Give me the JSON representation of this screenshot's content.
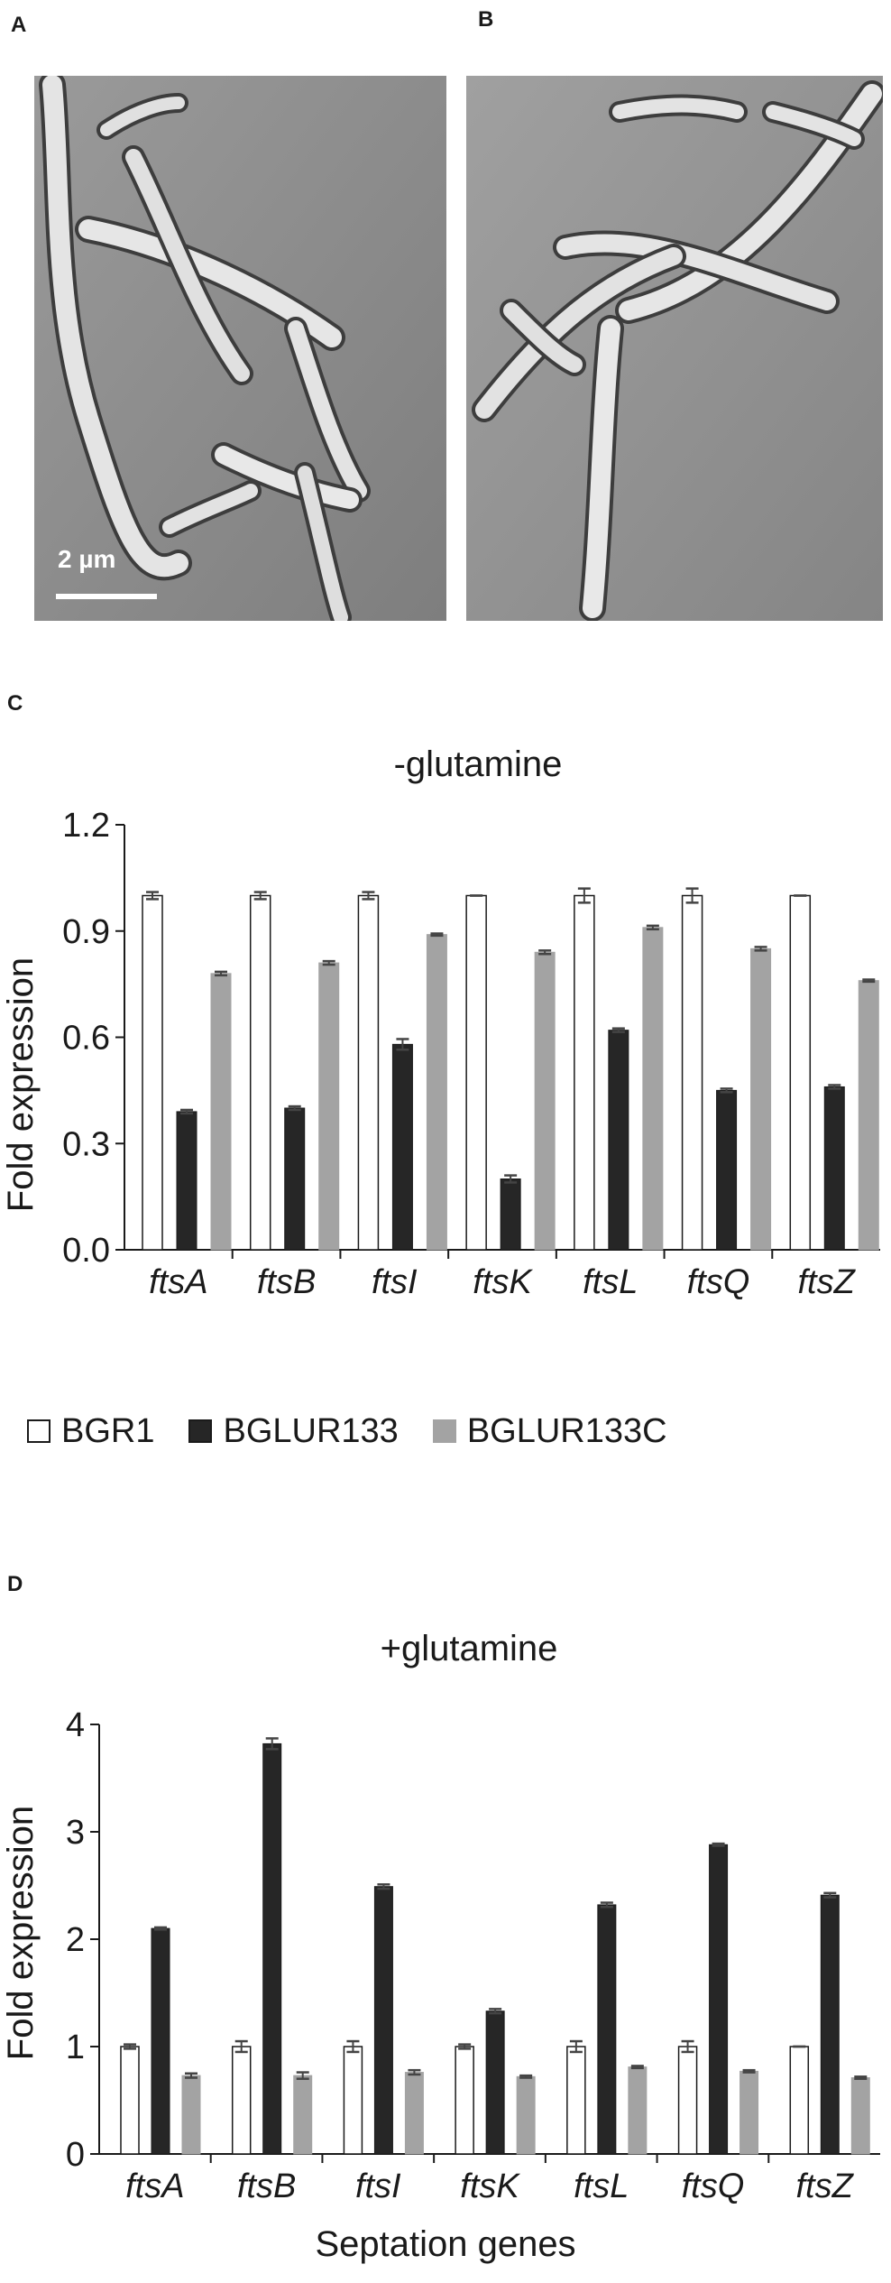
{
  "panels": {
    "a_label": "A",
    "b_label": "B",
    "c_label": "C",
    "d_label": "D",
    "scale_bar_label": "2 µm"
  },
  "legend": [
    {
      "name": "BGR1",
      "color": "#ffffff"
    },
    {
      "name": "BGLUR133",
      "color": "#262626"
    },
    {
      "name": "BGLUR133C",
      "color": "#a3a3a3"
    }
  ],
  "x_title": "Septation genes",
  "chart_data": [
    {
      "type": "bar",
      "title": "-glutamine",
      "ylabel": "Fold expression",
      "xlabel": "",
      "categories": [
        "ftsA",
        "ftsB",
        "ftsI",
        "ftsK",
        "ftsL",
        "ftsQ",
        "ftsZ"
      ],
      "ylim": [
        0,
        1.2
      ],
      "yticks": [
        "0.0",
        "0.3",
        "0.6",
        "0.9",
        "1.2"
      ],
      "yticks_values": [
        0,
        0.3,
        0.6,
        0.9,
        1.2
      ],
      "series": [
        {
          "name": "BGR1",
          "color": "#ffffff",
          "values": [
            1.0,
            1.0,
            1.0,
            1.0,
            1.0,
            1.0,
            1.0
          ],
          "errors": [
            0.01,
            0.01,
            0.01,
            0.0,
            0.02,
            0.02,
            0.0
          ]
        },
        {
          "name": "BGLUR133",
          "color": "#262626",
          "values": [
            0.39,
            0.4,
            0.58,
            0.2,
            0.62,
            0.45,
            0.46
          ],
          "errors": [
            0.005,
            0.005,
            0.015,
            0.01,
            0.005,
            0.005,
            0.005
          ]
        },
        {
          "name": "BGLUR133C",
          "color": "#a3a3a3",
          "values": [
            0.78,
            0.81,
            0.89,
            0.84,
            0.91,
            0.85,
            0.76
          ],
          "errors": [
            0.005,
            0.005,
            0.003,
            0.005,
            0.005,
            0.005,
            0.003
          ]
        }
      ]
    },
    {
      "type": "bar",
      "title": "+glutamine",
      "ylabel": "Fold expression",
      "xlabel": "Septation genes",
      "categories": [
        "ftsA",
        "ftsB",
        "ftsI",
        "ftsK",
        "ftsL",
        "ftsQ",
        "ftsZ"
      ],
      "ylim": [
        0,
        4
      ],
      "yticks": [
        "0",
        "1",
        "2",
        "3",
        "4"
      ],
      "yticks_values": [
        0,
        1,
        2,
        3,
        4
      ],
      "series": [
        {
          "name": "BGR1",
          "color": "#ffffff",
          "values": [
            1.0,
            1.0,
            1.0,
            1.0,
            1.0,
            1.0,
            1.0
          ],
          "errors": [
            0.02,
            0.05,
            0.05,
            0.02,
            0.05,
            0.05,
            0.0
          ]
        },
        {
          "name": "BGLUR133",
          "color": "#262626",
          "values": [
            2.1,
            3.82,
            2.49,
            1.33,
            2.32,
            2.88,
            2.41
          ],
          "errors": [
            0.01,
            0.05,
            0.02,
            0.02,
            0.02,
            0.01,
            0.02
          ]
        },
        {
          "name": "BGLUR133C",
          "color": "#a3a3a3",
          "values": [
            0.73,
            0.73,
            0.76,
            0.72,
            0.81,
            0.77,
            0.71
          ],
          "errors": [
            0.02,
            0.03,
            0.02,
            0.01,
            0.01,
            0.01,
            0.01
          ]
        }
      ]
    }
  ]
}
